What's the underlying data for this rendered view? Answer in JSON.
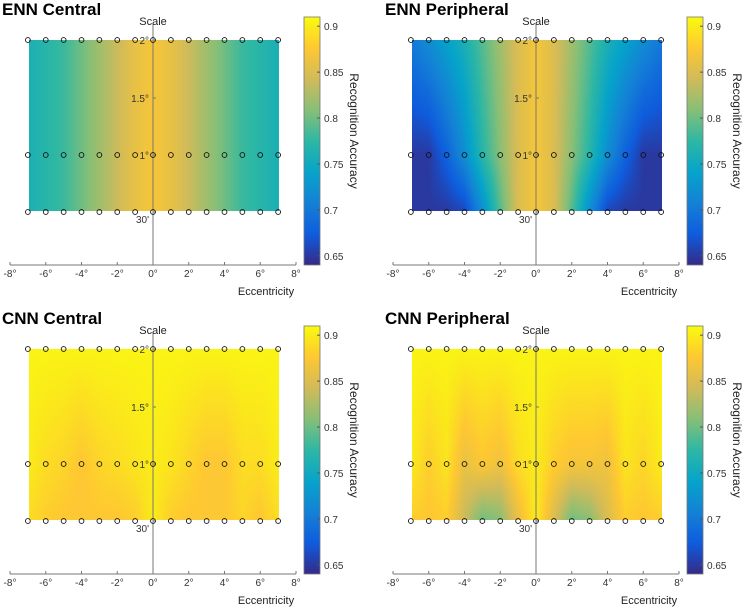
{
  "chart_data": [
    {
      "type": "heatmap",
      "title": "ENN Central",
      "xlabel": "Eccentricity",
      "ylabel": "Scale",
      "colorbar_label": "Recognition Accuracy",
      "xlim": [
        -8,
        8
      ],
      "x_ticks": [
        -8,
        -6,
        -4,
        -2,
        0,
        2,
        4,
        6,
        8
      ],
      "x_tick_labels": [
        "-8°",
        "-6°",
        "-4°",
        "-2°",
        "0°",
        "2°",
        "4°",
        "6°",
        "8°"
      ],
      "y_tick_labels": [
        "30'",
        "1°",
        "1.5°",
        "2°"
      ],
      "colorbar_ticks": [
        0.65,
        0.7,
        0.75,
        0.8,
        0.85,
        0.9
      ],
      "colorbar_tick_labels": [
        "0.65",
        "0.7",
        "0.75",
        "0.8",
        "0.85",
        "0.9"
      ],
      "clim": [
        0.64,
        0.91
      ],
      "sample_eccentricities": [
        -7,
        -6,
        -5,
        -4,
        -3,
        -2,
        -1,
        0,
        1,
        2,
        3,
        4,
        5,
        6,
        7
      ],
      "scale_rows": [
        {
          "scale": "2°",
          "values": [
            0.76,
            0.77,
            0.78,
            0.8,
            0.82,
            0.84,
            0.86,
            0.87,
            0.86,
            0.84,
            0.82,
            0.8,
            0.78,
            0.77,
            0.76
          ]
        },
        {
          "scale": "1°",
          "values": [
            0.76,
            0.77,
            0.78,
            0.8,
            0.82,
            0.84,
            0.86,
            0.87,
            0.86,
            0.84,
            0.82,
            0.8,
            0.78,
            0.77,
            0.76
          ]
        },
        {
          "scale": "30'",
          "values": [
            0.76,
            0.77,
            0.78,
            0.8,
            0.82,
            0.84,
            0.86,
            0.87,
            0.86,
            0.84,
            0.82,
            0.8,
            0.78,
            0.77,
            0.76
          ]
        }
      ]
    },
    {
      "type": "heatmap",
      "title": "ENN Peripheral",
      "xlabel": "Eccentricity",
      "ylabel": "Scale",
      "colorbar_label": "Recognition Accuracy",
      "xlim": [
        -8,
        8
      ],
      "x_ticks": [
        -8,
        -6,
        -4,
        -2,
        0,
        2,
        4,
        6,
        8
      ],
      "x_tick_labels": [
        "-8°",
        "-6°",
        "-4°",
        "-2°",
        "0°",
        "2°",
        "4°",
        "6°",
        "8°"
      ],
      "y_tick_labels": [
        "30'",
        "1°",
        "1.5°",
        "2°"
      ],
      "colorbar_ticks": [
        0.65,
        0.7,
        0.75,
        0.8,
        0.85,
        0.9
      ],
      "colorbar_tick_labels": [
        "0.65",
        "0.7",
        "0.75",
        "0.8",
        "0.85",
        "0.9"
      ],
      "clim": [
        0.64,
        0.91
      ],
      "sample_eccentricities": [
        -7,
        -6,
        -5,
        -4,
        -3,
        -2,
        -1,
        0,
        1,
        2,
        3,
        4,
        5,
        6,
        7
      ],
      "scale_rows": [
        {
          "scale": "2°",
          "values": [
            0.7,
            0.72,
            0.74,
            0.76,
            0.79,
            0.82,
            0.85,
            0.87,
            0.85,
            0.82,
            0.79,
            0.76,
            0.74,
            0.72,
            0.7
          ]
        },
        {
          "scale": "1°",
          "values": [
            0.65,
            0.65,
            0.68,
            0.72,
            0.77,
            0.81,
            0.85,
            0.87,
            0.85,
            0.81,
            0.77,
            0.72,
            0.68,
            0.65,
            0.65
          ]
        },
        {
          "scale": "30'",
          "values": [
            0.65,
            0.65,
            0.65,
            0.66,
            0.72,
            0.79,
            0.85,
            0.87,
            0.85,
            0.79,
            0.72,
            0.66,
            0.65,
            0.65,
            0.65
          ]
        }
      ]
    },
    {
      "type": "heatmap",
      "title": "CNN Central",
      "xlabel": "Eccentricity",
      "ylabel": "Scale",
      "colorbar_label": "Recognition Accuracy",
      "xlim": [
        -8,
        8
      ],
      "x_ticks": [
        -8,
        -6,
        -4,
        -2,
        0,
        2,
        4,
        6,
        8
      ],
      "x_tick_labels": [
        "-8°",
        "-6°",
        "-4°",
        "-2°",
        "0°",
        "2°",
        "4°",
        "6°",
        "8°"
      ],
      "y_tick_labels": [
        "30'",
        "1°",
        "1.5°",
        "2°"
      ],
      "colorbar_ticks": [
        0.65,
        0.7,
        0.75,
        0.8,
        0.85,
        0.9
      ],
      "colorbar_tick_labels": [
        "0.65",
        "0.7",
        "0.75",
        "0.8",
        "0.85",
        "0.9"
      ],
      "clim": [
        0.64,
        0.91
      ],
      "sample_eccentricities": [
        -7,
        -6,
        -5,
        -4,
        -3,
        -2,
        -1,
        0,
        1,
        2,
        3,
        4,
        5,
        6,
        7
      ],
      "scale_rows": [
        {
          "scale": "2°",
          "values": [
            0.905,
            0.905,
            0.905,
            0.905,
            0.905,
            0.905,
            0.905,
            0.905,
            0.905,
            0.905,
            0.905,
            0.905,
            0.905,
            0.905,
            0.905
          ]
        },
        {
          "scale": "1°",
          "values": [
            0.9,
            0.89,
            0.885,
            0.875,
            0.885,
            0.89,
            0.895,
            0.9,
            0.895,
            0.885,
            0.875,
            0.875,
            0.89,
            0.89,
            0.9
          ]
        },
        {
          "scale": "30'",
          "values": [
            0.89,
            0.88,
            0.875,
            0.875,
            0.875,
            0.875,
            0.88,
            0.9,
            0.88,
            0.875,
            0.875,
            0.875,
            0.885,
            0.875,
            0.89
          ]
        }
      ]
    },
    {
      "type": "heatmap",
      "title": "CNN Peripheral",
      "xlabel": "Eccentricity",
      "ylabel": "Scale",
      "colorbar_label": "Recognition Accuracy",
      "xlim": [
        -8,
        8
      ],
      "x_ticks": [
        -8,
        -6,
        -4,
        -2,
        0,
        2,
        4,
        6,
        8
      ],
      "x_tick_labels": [
        "-8°",
        "-6°",
        "-4°",
        "-2°",
        "0°",
        "2°",
        "4°",
        "6°",
        "8°"
      ],
      "y_tick_labels": [
        "30'",
        "1°",
        "1.5°",
        "2°"
      ],
      "colorbar_ticks": [
        0.65,
        0.7,
        0.75,
        0.8,
        0.85,
        0.9
      ],
      "colorbar_tick_labels": [
        "0.65",
        "0.7",
        "0.75",
        "0.8",
        "0.85",
        "0.9"
      ],
      "clim": [
        0.64,
        0.91
      ],
      "sample_eccentricities": [
        -7,
        -6,
        -5,
        -4,
        -3,
        -2,
        -1,
        0,
        1,
        2,
        3,
        4,
        5,
        6,
        7
      ],
      "scale_rows": [
        {
          "scale": "2°",
          "values": [
            0.905,
            0.905,
            0.905,
            0.905,
            0.905,
            0.905,
            0.905,
            0.905,
            0.905,
            0.905,
            0.905,
            0.905,
            0.905,
            0.905,
            0.905
          ]
        },
        {
          "scale": "1°",
          "values": [
            0.9,
            0.88,
            0.895,
            0.86,
            0.875,
            0.865,
            0.89,
            0.9,
            0.88,
            0.87,
            0.87,
            0.865,
            0.895,
            0.885,
            0.9
          ]
        },
        {
          "scale": "30'",
          "values": [
            0.88,
            0.875,
            0.88,
            0.84,
            0.8,
            0.81,
            0.86,
            0.9,
            0.85,
            0.8,
            0.81,
            0.85,
            0.88,
            0.875,
            0.88
          ]
        }
      ]
    }
  ]
}
